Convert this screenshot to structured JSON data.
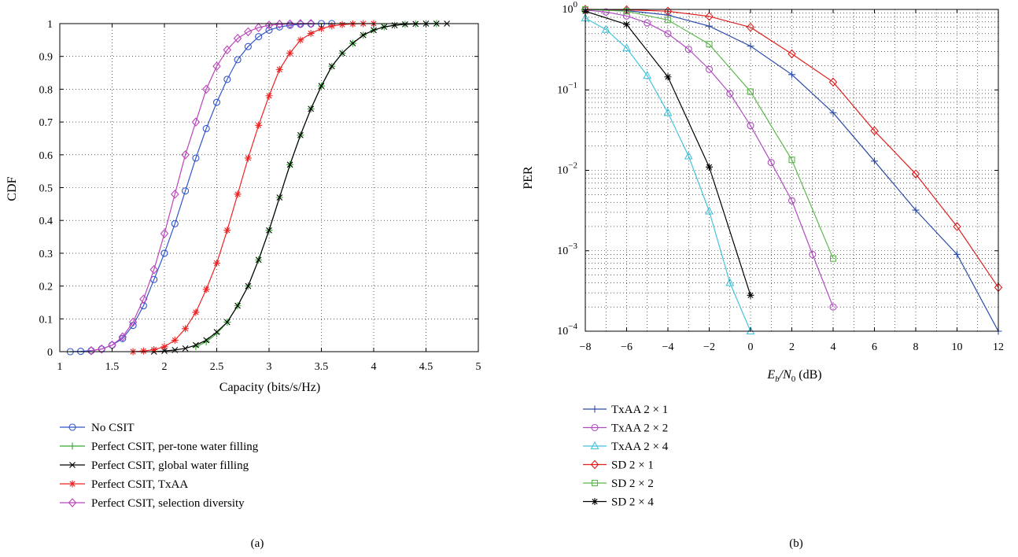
{
  "chart_data": [
    {
      "type": "line",
      "panel_label": "(a)",
      "xlabel": "Capacity (bits/s/Hz)",
      "ylabel": "CDF",
      "xlim": [
        1,
        5
      ],
      "ylim": [
        0,
        1
      ],
      "xticks": [
        "1",
        "1.5",
        "2",
        "2.5",
        "3",
        "3.5",
        "4",
        "4.5",
        "5"
      ],
      "yticks": [
        "0",
        "0.1",
        "0.2",
        "0.3",
        "0.4",
        "0.5",
        "0.6",
        "0.7",
        "0.8",
        "0.9",
        "1"
      ],
      "grid": true,
      "legend_position": "below",
      "series": [
        {
          "name": "No CSIT",
          "color": "#3355cc",
          "marker": "circle",
          "x": [
            1.1,
            1.2,
            1.3,
            1.4,
            1.5,
            1.6,
            1.7,
            1.8,
            1.9,
            2.0,
            2.1,
            2.2,
            2.3,
            2.4,
            2.5,
            2.6,
            2.7,
            2.8,
            2.9,
            3.0,
            3.1,
            3.2,
            3.3,
            3.4,
            3.5,
            3.6
          ],
          "y": [
            0.0,
            0.001,
            0.003,
            0.008,
            0.02,
            0.04,
            0.08,
            0.14,
            0.22,
            0.3,
            0.39,
            0.49,
            0.59,
            0.68,
            0.76,
            0.83,
            0.89,
            0.93,
            0.96,
            0.98,
            0.99,
            0.995,
            0.998,
            0.999,
            1.0,
            1.0
          ]
        },
        {
          "name": "Perfect CSIT, per-tone water filling",
          "color": "#33aa33",
          "marker": "plus",
          "x": [
            2.3,
            2.4,
            2.5,
            2.6,
            2.7,
            2.8,
            2.9,
            3.0,
            3.1,
            3.2,
            3.3,
            3.4,
            3.5,
            3.6,
            3.7,
            3.8,
            3.9,
            4.0,
            4.1,
            4.2,
            4.3,
            4.4,
            4.5,
            4.6
          ],
          "y": [
            0.015,
            0.03,
            0.055,
            0.09,
            0.14,
            0.2,
            0.28,
            0.37,
            0.47,
            0.57,
            0.66,
            0.74,
            0.81,
            0.87,
            0.91,
            0.94,
            0.965,
            0.98,
            0.99,
            0.995,
            0.998,
            0.999,
            1.0,
            1.0
          ]
        },
        {
          "name": "Perfect CSIT, global water filling",
          "color": "#000000",
          "marker": "x",
          "x": [
            1.9,
            2.0,
            2.1,
            2.2,
            2.3,
            2.4,
            2.5,
            2.6,
            2.7,
            2.8,
            2.9,
            3.0,
            3.1,
            3.2,
            3.3,
            3.4,
            3.5,
            3.6,
            3.7,
            3.8,
            3.9,
            4.0,
            4.1,
            4.2,
            4.3,
            4.4,
            4.5,
            4.6,
            4.7
          ],
          "y": [
            0.0,
            0.002,
            0.005,
            0.01,
            0.02,
            0.035,
            0.06,
            0.09,
            0.14,
            0.2,
            0.28,
            0.37,
            0.47,
            0.57,
            0.66,
            0.74,
            0.81,
            0.87,
            0.91,
            0.94,
            0.965,
            0.98,
            0.99,
            0.995,
            0.998,
            0.999,
            1.0,
            1.0,
            1.0
          ]
        },
        {
          "name": "Perfect CSIT, TxAA",
          "color": "#ee2222",
          "marker": "asterisk",
          "x": [
            1.7,
            1.8,
            1.9,
            2.0,
            2.1,
            2.2,
            2.3,
            2.4,
            2.5,
            2.6,
            2.7,
            2.8,
            2.9,
            3.0,
            3.1,
            3.2,
            3.3,
            3.4,
            3.5,
            3.6,
            3.7,
            3.8,
            3.9,
            4.0
          ],
          "y": [
            0.0,
            0.002,
            0.006,
            0.015,
            0.035,
            0.07,
            0.12,
            0.19,
            0.27,
            0.37,
            0.48,
            0.59,
            0.69,
            0.78,
            0.86,
            0.91,
            0.95,
            0.97,
            0.985,
            0.993,
            0.997,
            0.999,
            1.0,
            1.0
          ]
        },
        {
          "name": "Perfect CSIT, selection diversity",
          "color": "#bb44bb",
          "marker": "diamond",
          "x": [
            1.3,
            1.4,
            1.5,
            1.6,
            1.7,
            1.8,
            1.9,
            2.0,
            2.1,
            2.2,
            2.3,
            2.4,
            2.5,
            2.6,
            2.7,
            2.8,
            2.9,
            3.0,
            3.1,
            3.2,
            3.3,
            3.4
          ],
          "y": [
            0.003,
            0.008,
            0.02,
            0.045,
            0.09,
            0.16,
            0.25,
            0.36,
            0.48,
            0.6,
            0.7,
            0.8,
            0.87,
            0.92,
            0.955,
            0.975,
            0.988,
            0.995,
            0.998,
            0.999,
            1.0,
            1.0
          ]
        }
      ]
    },
    {
      "type": "line",
      "panel_label": "(b)",
      "xlabel_parts": [
        "E",
        "b",
        "/N",
        "0",
        " (dB)"
      ],
      "ylabel": "PER",
      "xlim": [
        -8,
        12
      ],
      "ylim": [
        0.0001,
        1
      ],
      "yscale": "log",
      "xticks": [
        "−8",
        "−6",
        "−4",
        "−2",
        "0",
        "2",
        "4",
        "6",
        "8",
        "10",
        "12"
      ],
      "yticks": [
        {
          "base": "10",
          "exp": "0"
        },
        {
          "base": "10",
          "exp": "−1"
        },
        {
          "base": "10",
          "exp": "−2"
        },
        {
          "base": "10",
          "exp": "−3"
        },
        {
          "base": "10",
          "exp": "−4"
        }
      ],
      "grid": true,
      "legend_position": "below",
      "series": [
        {
          "name": "TxAA 2 × 1",
          "color": "#2b4aa8",
          "marker": "plus",
          "x": [
            -8,
            -6,
            -4,
            -2,
            0,
            2,
            4,
            6,
            8,
            10,
            12
          ],
          "y": [
            1.0,
            0.97,
            0.85,
            0.62,
            0.35,
            0.155,
            0.052,
            0.013,
            0.0032,
            0.0009,
            0.0001
          ]
        },
        {
          "name": "TxAA 2 × 2",
          "color": "#b04cc0",
          "marker": "circle",
          "x": [
            -8,
            -7,
            -6,
            -5,
            -4,
            -3,
            -2,
            -1,
            0,
            1,
            2,
            3,
            4
          ],
          "y": [
            0.98,
            0.93,
            0.83,
            0.68,
            0.5,
            0.32,
            0.18,
            0.09,
            0.036,
            0.0125,
            0.0042,
            0.0009,
            0.0002
          ]
        },
        {
          "name": "TxAA 2 × 4",
          "color": "#44c4dc",
          "marker": "triangle",
          "x": [
            -8,
            -7,
            -6,
            -5,
            -4,
            -3,
            -2,
            -1,
            0
          ],
          "y": [
            0.78,
            0.56,
            0.33,
            0.15,
            0.052,
            0.015,
            0.0031,
            0.0004,
            0.0001
          ]
        },
        {
          "name": "SD 2 × 1",
          "color": "#e02020",
          "marker": "diamond",
          "x": [
            -8,
            -6,
            -4,
            -2,
            0,
            2,
            4,
            6,
            8,
            10,
            12
          ],
          "y": [
            1.0,
            0.99,
            0.95,
            0.82,
            0.6,
            0.28,
            0.125,
            0.031,
            0.009,
            0.002,
            0.00035
          ]
        },
        {
          "name": "SD 2 × 2",
          "color": "#5cb84c",
          "marker": "square",
          "x": [
            -8,
            -6,
            -4,
            -2,
            0,
            2,
            4
          ],
          "y": [
            1.0,
            0.95,
            0.74,
            0.37,
            0.095,
            0.0135,
            0.0008
          ]
        },
        {
          "name": "SD 2 × 4",
          "color": "#000000",
          "marker": "asterisk",
          "x": [
            -8,
            -6,
            -4,
            -2,
            0
          ],
          "y": [
            0.95,
            0.65,
            0.145,
            0.011,
            0.00028
          ]
        }
      ]
    }
  ]
}
